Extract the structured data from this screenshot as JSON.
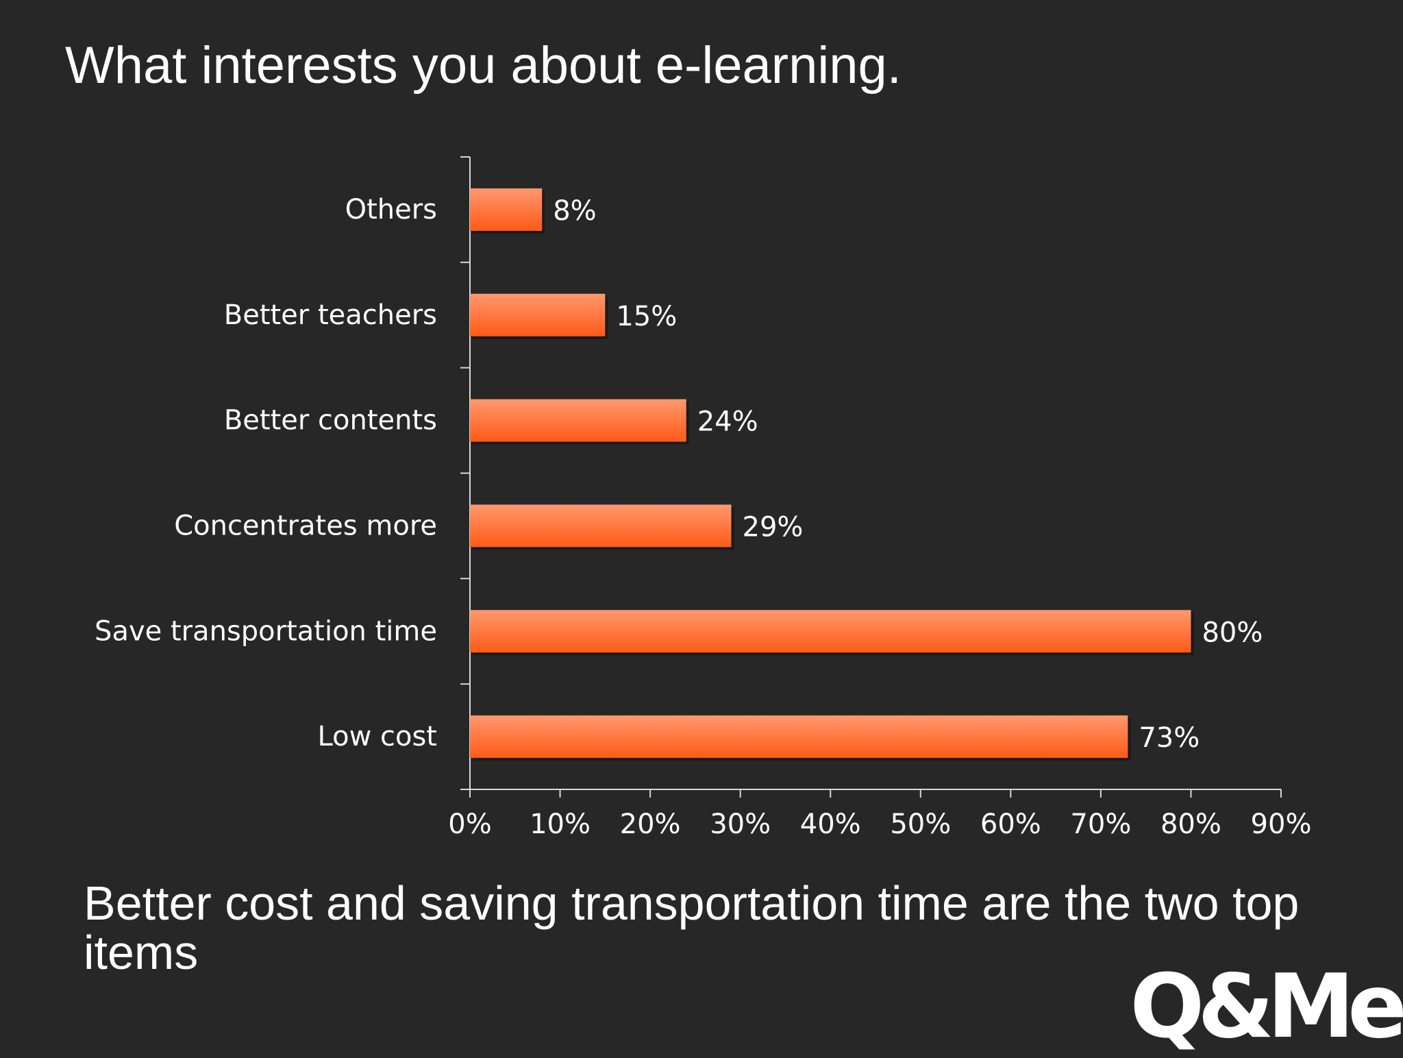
{
  "slide": {
    "title": "What interests you about e-learning.",
    "caption": "Better cost and saving transportation time are the two top items",
    "logo_text": "Q&Me"
  },
  "colors": {
    "background": "#272727",
    "bar_light": "#ff9870",
    "bar_dark": "#ff5a16",
    "text": "#ffffff",
    "axis": "#d9d9d9"
  },
  "chart_data": {
    "type": "bar",
    "orientation": "horizontal",
    "categories": [
      "Others",
      "Better teachers",
      "Better contents",
      "Concentrates more",
      "Save transportation time",
      "Low cost"
    ],
    "values": [
      8,
      15,
      24,
      29,
      80,
      73
    ],
    "value_labels": [
      "8%",
      "15%",
      "24%",
      "29%",
      "80%",
      "73%"
    ],
    "xlim": [
      0,
      90
    ],
    "xticks": [
      0,
      10,
      20,
      30,
      40,
      50,
      60,
      70,
      80,
      90
    ],
    "xtick_labels": [
      "0%",
      "10%",
      "20%",
      "30%",
      "40%",
      "50%",
      "60%",
      "70%",
      "80%",
      "90%"
    ],
    "grid": false,
    "legend": "none"
  }
}
